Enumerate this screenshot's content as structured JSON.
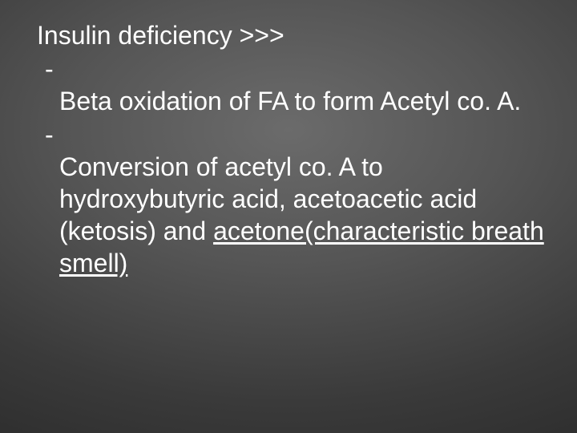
{
  "slide": {
    "background_gradient_center": "#6b6b6b",
    "background_gradient_mid": "#555555",
    "background_gradient_outer": "#3a3a3a",
    "background_gradient_edge": "#2a2a2a",
    "text_color": "#ffffff",
    "font_family": "Arial",
    "title_fontsize": 32,
    "body_fontsize": 32,
    "title": "Insulin deficiency >>>",
    "bullets": [
      {
        "dash": "-",
        "text_plain": "Beta oxidation of FA to form Acetyl co. A.",
        "underlined": false
      },
      {
        "dash": "-",
        "text_prefix": "Conversion of acetyl co. A to hydroxybutyric acid, acetoacetic acid (ketosis) and ",
        "text_underlined": "acetone(characteristic breath smell)",
        "underlined": true
      }
    ]
  }
}
